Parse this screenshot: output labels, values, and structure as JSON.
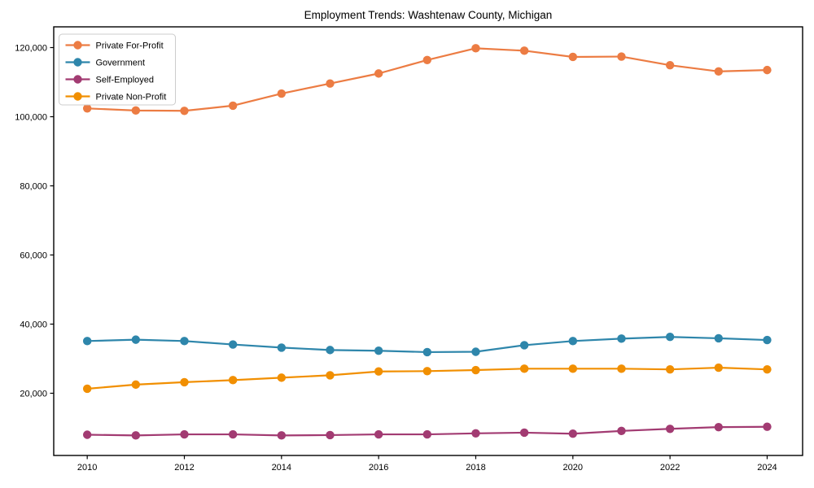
{
  "chart_data": {
    "type": "line",
    "title": "Employment Trends: Washtenaw County, Michigan",
    "xlabel": "",
    "ylabel": "",
    "grid": false,
    "legend_position": "upper-left",
    "xlim": [
      2009.31,
      2024.73
    ],
    "ylim": [
      2000,
      126000
    ],
    "x": [
      2010,
      2011,
      2012,
      2013,
      2014,
      2015,
      2016,
      2017,
      2018,
      2019,
      2020,
      2021,
      2022,
      2023,
      2024
    ],
    "xticks": [
      2010,
      2012,
      2014,
      2016,
      2018,
      2020,
      2022,
      2024
    ],
    "xtick_labels": [
      "2010",
      "2012",
      "2014",
      "2016",
      "2018",
      "2020",
      "2022",
      "2024"
    ],
    "yticks": [
      20000,
      40000,
      60000,
      80000,
      100000,
      120000
    ],
    "ytick_labels": [
      "20,000",
      "40,000",
      "60,000",
      "80,000",
      "100,000",
      "120,000"
    ],
    "series": [
      {
        "name": "Private For-Profit",
        "color": "#ec7c43",
        "values": [
          102400,
          101800,
          101700,
          103200,
          106700,
          109600,
          112500,
          116400,
          119800,
          119100,
          117300,
          117400,
          114900,
          113100,
          113500
        ]
      },
      {
        "name": "Government",
        "color": "#2e86ab",
        "values": [
          35100,
          35500,
          35100,
          34100,
          33200,
          32500,
          32300,
          31900,
          32000,
          33900,
          35100,
          35800,
          36300,
          35900,
          35400
        ]
      },
      {
        "name": "Self-Employed",
        "color": "#a23b72",
        "values": [
          8000,
          7800,
          8100,
          8100,
          7800,
          7900,
          8100,
          8100,
          8400,
          8600,
          8300,
          9100,
          9700,
          10200,
          10300
        ]
      },
      {
        "name": "Private Non-Profit",
        "color": "#f18f01",
        "values": [
          21300,
          22500,
          23200,
          23800,
          24500,
          25200,
          26300,
          26400,
          26700,
          27100,
          27100,
          27100,
          26900,
          27400,
          26900
        ]
      }
    ]
  }
}
